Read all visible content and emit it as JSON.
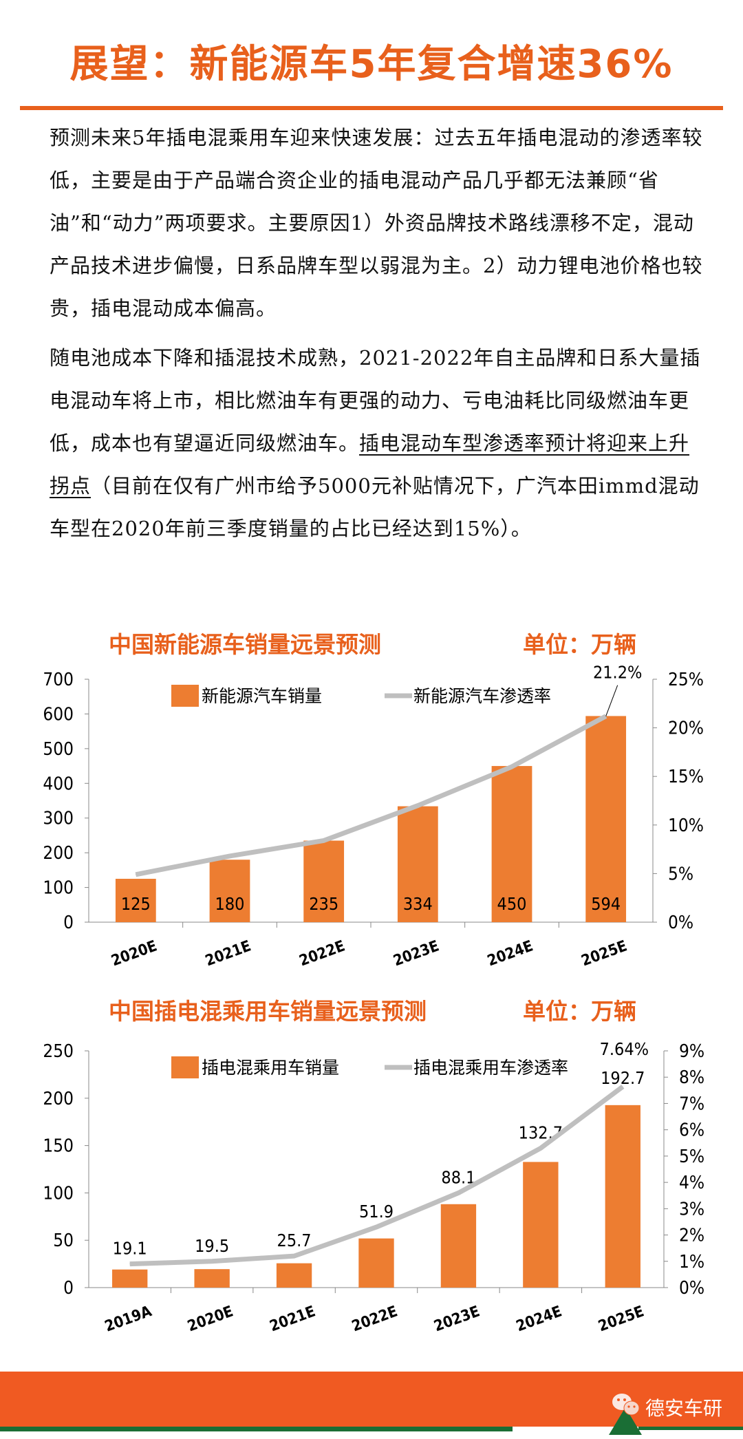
{
  "header": {
    "title": "展望：新能源车5年复合增速36%"
  },
  "paragraphs": {
    "p1": "预测未来5年插电混乘用车迎来快速发展：过去五年插电混动的渗透率较低，主要是由于产品端合资企业的插电混动产品几乎都无法兼顾“省油”和“动力”两项要求。主要原因1）外资品牌技术路线漂移不定，混动产品技术进步偏慢，日系品牌车型以弱混为主。2）动力锂电池价格也较贵，插电混动成本偏高。",
    "p2_a": "随电池成本下降和插混技术成熟，2021-2022年自主品牌和日系大量插电混动车将上市，相比燃油车有更强的动力、亏电油耗比同级燃油车更低，成本也有望逼近同级燃油车。",
    "p2_underline": "插电混动车型渗透率预计将迎来上升拐点",
    "p2_b": "（目前在仅有广州市给予5000元补贴情况下，广汽本田immd混动车型在2020年前三季度销量的占比已经达到15%）。"
  },
  "chart_data": [
    {
      "type": "bar+line",
      "title": "中国新能源车销量远景预测",
      "unit": "单位：万辆",
      "categories": [
        "2020E",
        "2021E",
        "2022E",
        "2023E",
        "2024E",
        "2025E"
      ],
      "series": [
        {
          "name": "新能源汽车销量",
          "type": "bar",
          "axis": "left",
          "values": [
            125,
            180,
            235,
            334,
            450,
            594
          ],
          "labels": [
            "125",
            "180",
            "235",
            "334",
            "450",
            "594"
          ]
        },
        {
          "name": "新能源汽车渗透率",
          "type": "line",
          "axis": "right",
          "values": [
            4.9,
            6.8,
            8.4,
            12.0,
            16.0,
            21.2
          ],
          "labels": [
            "",
            "",
            "",
            "",
            "",
            "21.2%"
          ]
        }
      ],
      "ylim": [
        0,
        700
      ],
      "yticks": [
        "0",
        "100",
        "200",
        "300",
        "400",
        "500",
        "600",
        "700"
      ],
      "y2lim": [
        0,
        25
      ],
      "y2ticks": [
        "0%",
        "5%",
        "10%",
        "15%",
        "20%",
        "25%"
      ],
      "legend": "top",
      "bar_color": "#ED7D31",
      "line_color": "#BFBFBF"
    },
    {
      "type": "bar+line",
      "title": "中国插电混乘用车销量远景预测",
      "unit": "单位：万辆",
      "categories": [
        "2019A",
        "2020E",
        "2021E",
        "2022E",
        "2023E",
        "2024E",
        "2025E"
      ],
      "series": [
        {
          "name": "插电混乘用车销量",
          "type": "bar",
          "axis": "left",
          "values": [
            19.1,
            19.5,
            25.7,
            51.9,
            88.1,
            132.7,
            192.7
          ],
          "labels": [
            "19.1",
            "19.5",
            "25.7",
            "51.9",
            "88.1",
            "132.7",
            "192.7"
          ]
        },
        {
          "name": "插电混乘用车渗透率",
          "type": "line",
          "axis": "right",
          "values": [
            0.9,
            1.0,
            1.2,
            2.3,
            3.6,
            5.3,
            7.64
          ],
          "labels": [
            "",
            "",
            "",
            "",
            "",
            "",
            "7.64%"
          ]
        }
      ],
      "ylim": [
        0,
        250
      ],
      "yticks": [
        "0",
        "50",
        "100",
        "150",
        "200",
        "250"
      ],
      "y2lim": [
        0,
        9
      ],
      "y2ticks": [
        "0%",
        "1%",
        "2%",
        "3%",
        "4%",
        "5%",
        "6%",
        "7%",
        "8%",
        "9%"
      ],
      "legend": "top",
      "bar_color": "#ED7D31",
      "line_color": "#BFBFBF"
    }
  ],
  "footer": {
    "brand": "德安车研",
    "brand_icon": "wechat-icon",
    "color": "#F05A22",
    "accent": "#1A6E35"
  }
}
